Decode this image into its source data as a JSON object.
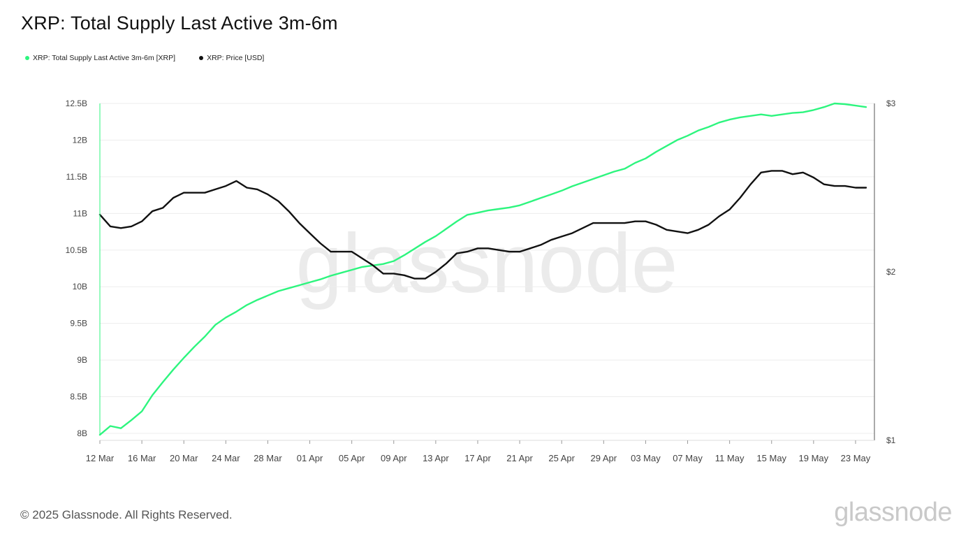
{
  "title": "XRP: Total Supply Last Active 3m-6m",
  "legend": [
    {
      "label": "XRP: Total Supply Last Active 3m-6m [XRP]",
      "color": "#2df57e"
    },
    {
      "label": "XRP: Price [USD]",
      "color": "#111111"
    }
  ],
  "watermark": "glassnode",
  "footer": "© 2025 Glassnode. All Rights Reserved.",
  "brand": "glassnode",
  "chart_data": {
    "type": "line",
    "title": "XRP: Total Supply Last Active 3m-6m",
    "x_ticks": [
      "12 Mar",
      "16 Mar",
      "20 Mar",
      "24 Mar",
      "28 Mar",
      "01 Apr",
      "05 Apr",
      "09 Apr",
      "13 Apr",
      "17 Apr",
      "21 Apr",
      "25 Apr",
      "29 Apr",
      "03 May",
      "07 May",
      "11 May",
      "15 May",
      "19 May",
      "23 May"
    ],
    "x_range": [
      "2025-03-12",
      "2025-05-24"
    ],
    "y_left": {
      "ticks": [
        "8B",
        "8.5B",
        "9B",
        "9.5B",
        "10B",
        "10.5B",
        "11B",
        "11.5B",
        "12B",
        "12.5B"
      ],
      "ylim": [
        8.0,
        12.5
      ],
      "unit": "B XRP"
    },
    "y_right": {
      "ticks": [
        "$1",
        "$2",
        "$3"
      ],
      "ylim": [
        1,
        3
      ],
      "scale": "linear"
    },
    "grid": true,
    "legend_position": "top-left",
    "series": [
      {
        "name": "XRP: Total Supply Last Active 3m-6m [XRP]",
        "axis": "left",
        "color": "#2df57e",
        "x": [
          "2025-03-12",
          "2025-03-13",
          "2025-03-14",
          "2025-03-15",
          "2025-03-16",
          "2025-03-17",
          "2025-03-18",
          "2025-03-19",
          "2025-03-20",
          "2025-03-21",
          "2025-03-22",
          "2025-03-23",
          "2025-03-24",
          "2025-03-25",
          "2025-03-26",
          "2025-03-27",
          "2025-03-28",
          "2025-03-29",
          "2025-03-30",
          "2025-03-31",
          "2025-04-01",
          "2025-04-02",
          "2025-04-03",
          "2025-04-04",
          "2025-04-05",
          "2025-04-06",
          "2025-04-07",
          "2025-04-08",
          "2025-04-09",
          "2025-04-10",
          "2025-04-11",
          "2025-04-12",
          "2025-04-13",
          "2025-04-14",
          "2025-04-15",
          "2025-04-16",
          "2025-04-17",
          "2025-04-18",
          "2025-04-19",
          "2025-04-20",
          "2025-04-21",
          "2025-04-22",
          "2025-04-23",
          "2025-04-24",
          "2025-04-25",
          "2025-04-26",
          "2025-04-27",
          "2025-04-28",
          "2025-04-29",
          "2025-04-30",
          "2025-05-01",
          "2025-05-02",
          "2025-05-03",
          "2025-05-04",
          "2025-05-05",
          "2025-05-06",
          "2025-05-07",
          "2025-05-08",
          "2025-05-09",
          "2025-05-10",
          "2025-05-11",
          "2025-05-12",
          "2025-05-13",
          "2025-05-14",
          "2025-05-15",
          "2025-05-16",
          "2025-05-17",
          "2025-05-18",
          "2025-05-19",
          "2025-05-20",
          "2025-05-21",
          "2025-05-22",
          "2025-05-23",
          "2025-05-24"
        ],
        "values": [
          7.98,
          8.1,
          8.07,
          8.18,
          8.3,
          8.52,
          8.7,
          8.87,
          9.03,
          9.18,
          9.32,
          9.48,
          9.58,
          9.66,
          9.75,
          9.82,
          9.88,
          9.94,
          9.98,
          10.02,
          10.06,
          10.1,
          10.15,
          10.19,
          10.23,
          10.27,
          10.29,
          10.31,
          10.35,
          10.43,
          10.52,
          10.61,
          10.69,
          10.79,
          10.89,
          10.98,
          11.01,
          11.04,
          11.06,
          11.08,
          11.11,
          11.16,
          11.21,
          11.26,
          11.31,
          11.37,
          11.42,
          11.47,
          11.52,
          11.57,
          11.61,
          11.69,
          11.75,
          11.84,
          11.92,
          12.0,
          12.06,
          12.13,
          12.18,
          12.24,
          12.28,
          12.31,
          12.33,
          12.35,
          12.33,
          12.35,
          12.37,
          12.38,
          12.41,
          12.45,
          12.5,
          12.49,
          12.47,
          12.45
        ]
      },
      {
        "name": "XRP: Price [USD]",
        "axis": "right",
        "color": "#111111",
        "x": [
          "2025-03-12",
          "2025-03-13",
          "2025-03-14",
          "2025-03-15",
          "2025-03-16",
          "2025-03-17",
          "2025-03-18",
          "2025-03-19",
          "2025-03-20",
          "2025-03-21",
          "2025-03-22",
          "2025-03-23",
          "2025-03-24",
          "2025-03-25",
          "2025-03-26",
          "2025-03-27",
          "2025-03-28",
          "2025-03-29",
          "2025-03-30",
          "2025-03-31",
          "2025-04-01",
          "2025-04-02",
          "2025-04-03",
          "2025-04-04",
          "2025-04-05",
          "2025-04-06",
          "2025-04-07",
          "2025-04-08",
          "2025-04-09",
          "2025-04-10",
          "2025-04-11",
          "2025-04-12",
          "2025-04-13",
          "2025-04-14",
          "2025-04-15",
          "2025-04-16",
          "2025-04-17",
          "2025-04-18",
          "2025-04-19",
          "2025-04-20",
          "2025-04-21",
          "2025-04-22",
          "2025-04-23",
          "2025-04-24",
          "2025-04-25",
          "2025-04-26",
          "2025-04-27",
          "2025-04-28",
          "2025-04-29",
          "2025-04-30",
          "2025-05-01",
          "2025-05-02",
          "2025-05-03",
          "2025-05-04",
          "2025-05-05",
          "2025-05-06",
          "2025-05-07",
          "2025-05-08",
          "2025-05-09",
          "2025-05-10",
          "2025-05-11",
          "2025-05-12",
          "2025-05-13",
          "2025-05-14",
          "2025-05-15",
          "2025-05-16",
          "2025-05-17",
          "2025-05-18",
          "2025-05-19",
          "2025-05-20",
          "2025-05-21",
          "2025-05-22",
          "2025-05-23",
          "2025-05-24"
        ],
        "values": [
          2.34,
          2.27,
          2.26,
          2.27,
          2.3,
          2.36,
          2.38,
          2.44,
          2.47,
          2.47,
          2.47,
          2.49,
          2.51,
          2.54,
          2.5,
          2.49,
          2.46,
          2.42,
          2.36,
          2.29,
          2.23,
          2.17,
          2.12,
          2.12,
          2.12,
          2.08,
          2.04,
          1.99,
          1.99,
          1.98,
          1.96,
          1.96,
          2.0,
          2.05,
          2.11,
          2.12,
          2.14,
          2.14,
          2.13,
          2.12,
          2.12,
          2.14,
          2.16,
          2.19,
          2.21,
          2.23,
          2.26,
          2.29,
          2.29,
          2.29,
          2.29,
          2.3,
          2.3,
          2.28,
          2.25,
          2.24,
          2.23,
          2.25,
          2.28,
          2.33,
          2.37,
          2.44,
          2.52,
          2.59,
          2.6,
          2.6,
          2.58,
          2.59,
          2.56,
          2.52,
          2.51,
          2.51,
          2.5,
          2.5
        ]
      }
    ]
  }
}
